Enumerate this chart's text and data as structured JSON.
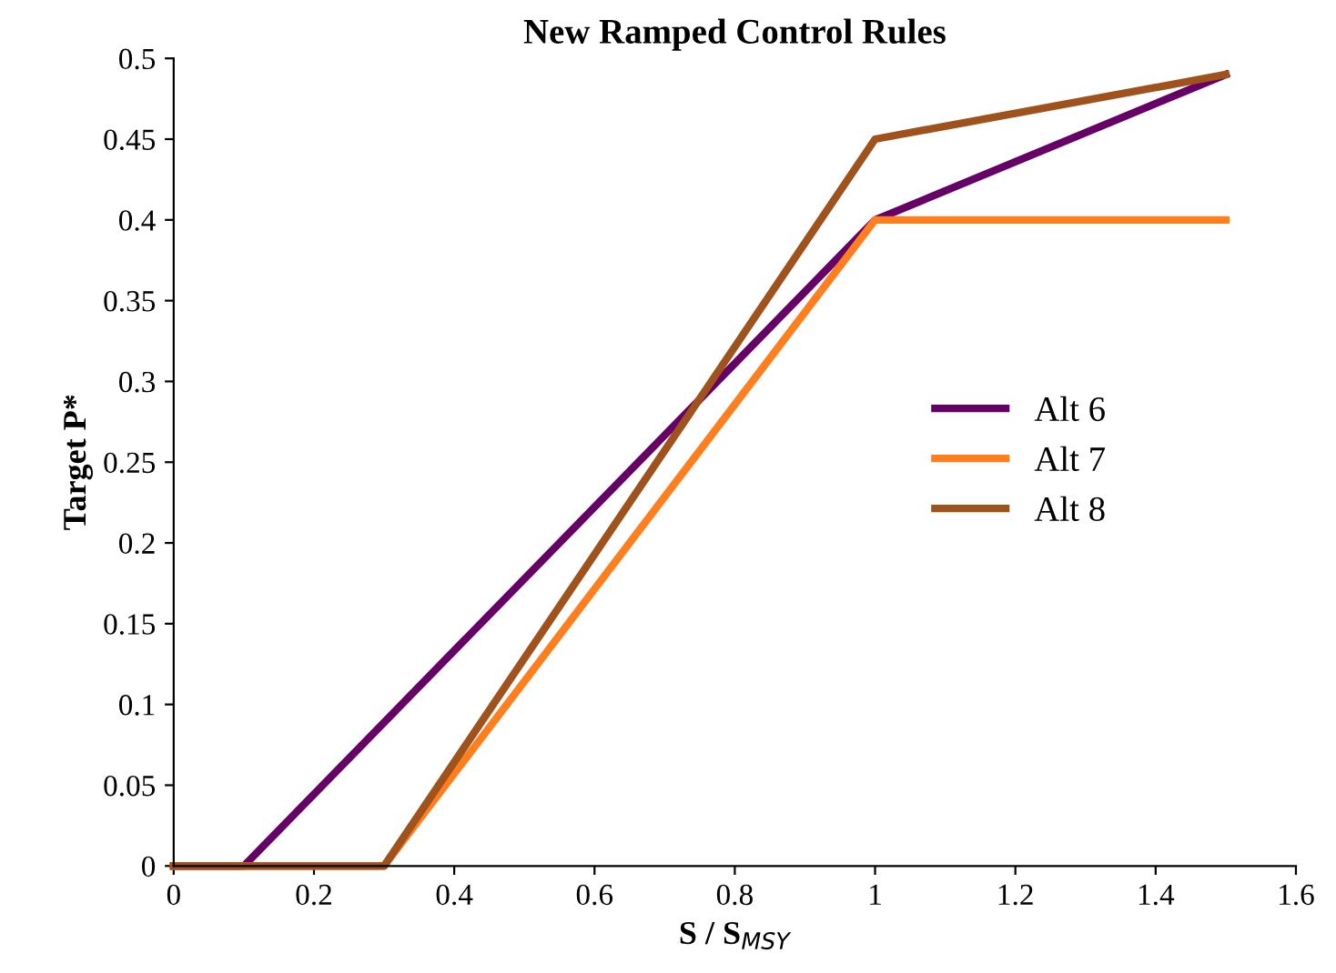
{
  "chart_data": {
    "type": "line",
    "title": "New Ramped Control Rules",
    "xlabel": "S / S$_{MSY}$",
    "ylabel": "Target P*",
    "xlim": [
      0,
      1.6
    ],
    "ylim": [
      0,
      0.5
    ],
    "xticks": [
      0,
      0.2,
      0.4,
      0.6,
      0.8,
      1,
      1.2,
      1.4,
      1.6
    ],
    "yticks": [
      0,
      0.05,
      0.1,
      0.15,
      0.2,
      0.25,
      0.3,
      0.35,
      0.4,
      0.45,
      0.5
    ],
    "grid": false,
    "legend": "right",
    "marker": "none",
    "line_style": "solid",
    "series": [
      {
        "name": "Alt 6",
        "color": "#660066",
        "x": [
          0,
          0.1,
          1,
          1.5
        ],
        "values": [
          0,
          0,
          0.4,
          0.49
        ]
      },
      {
        "name": "Alt 7",
        "color": "#ff7f1f",
        "x": [
          0,
          0.3,
          1,
          1.5
        ],
        "values": [
          0,
          0,
          0.4,
          0.4
        ]
      },
      {
        "name": "Alt 8",
        "color": "#a0521c",
        "x": [
          0,
          0.3,
          1,
          1.5
        ],
        "values": [
          0,
          0,
          0.45,
          0.49
        ]
      }
    ]
  }
}
